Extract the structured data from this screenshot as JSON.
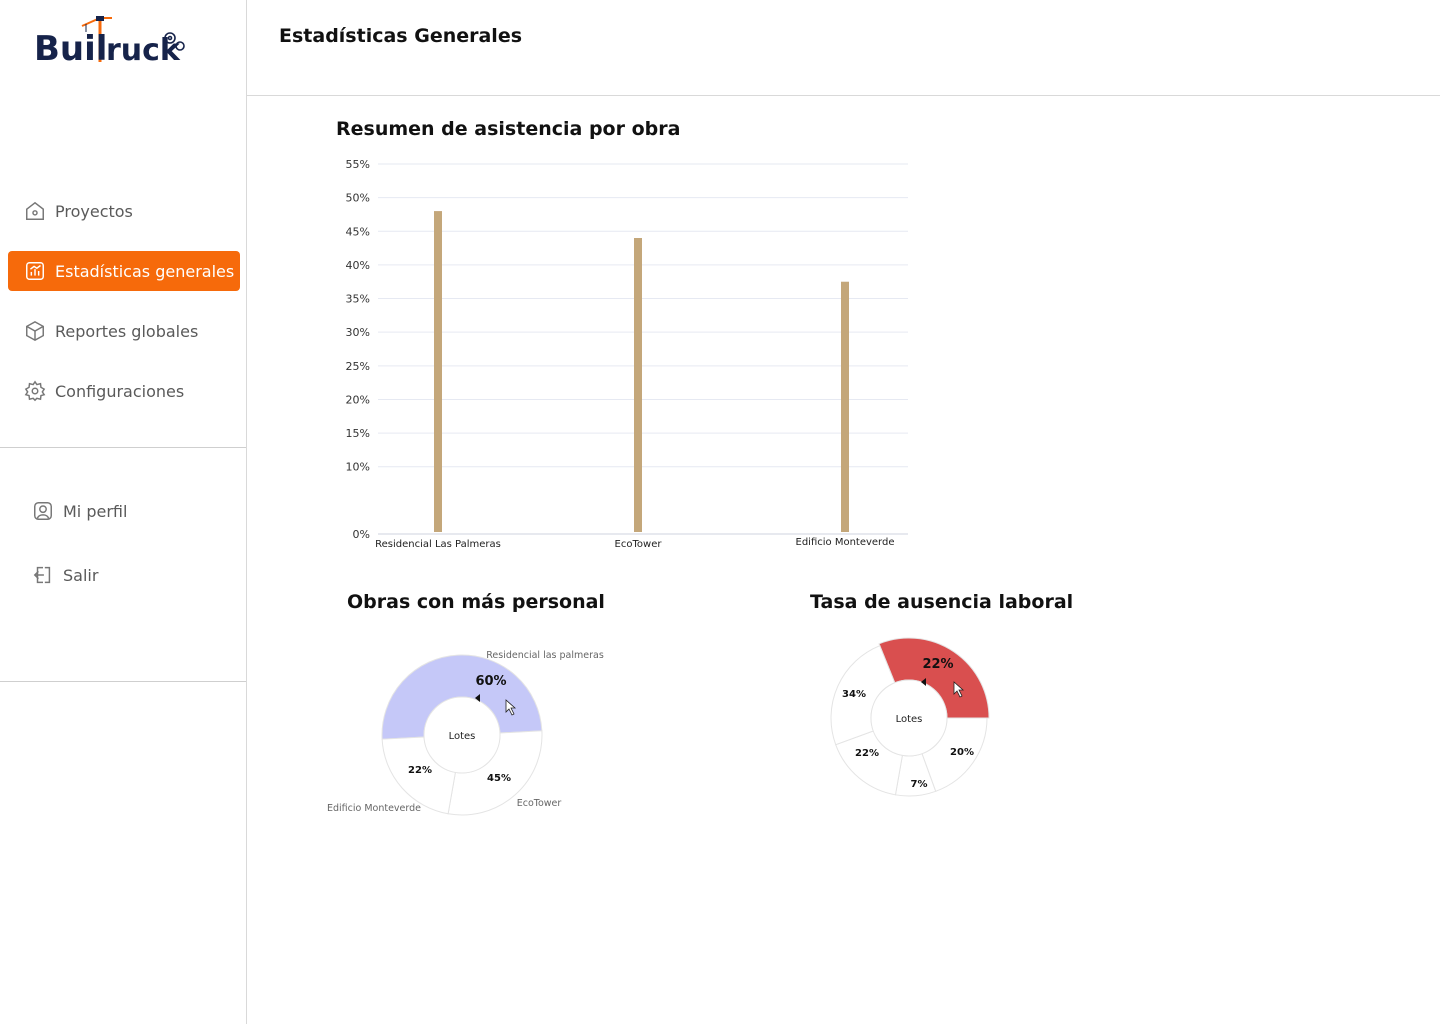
{
  "brand": {
    "name": "BuilTruck",
    "accent": "#f66a0b",
    "navy": "#16234a"
  },
  "sidebar": {
    "items": [
      {
        "label": "Proyectos",
        "icon": "home-icon",
        "active": false
      },
      {
        "label": "Estadísticas generales",
        "icon": "chart-icon",
        "active": true
      },
      {
        "label": "Reportes globales",
        "icon": "cube-icon",
        "active": false
      },
      {
        "label": "Configuraciones",
        "icon": "gear-icon",
        "active": false
      }
    ],
    "secondary": [
      {
        "label": "Mi perfil",
        "icon": "user-icon"
      },
      {
        "label": "Salir",
        "icon": "logout-icon"
      }
    ]
  },
  "header": {
    "title": "Estadísticas Generales"
  },
  "charts": {
    "attendance_title": "Resumen de asistencia por obra",
    "staff_title": "Obras con más personal",
    "absence_title": "Tasa de ausencia laboral"
  },
  "chart_data": [
    {
      "type": "bar",
      "title": "Resumen de asistencia por obra",
      "categories": [
        "Residencial Las Palmeras",
        "EcoTower",
        "Edificio Monteverde"
      ],
      "values": [
        48,
        44,
        37.5
      ],
      "ylim": [
        0,
        55
      ],
      "yticks": [
        "0%",
        "10%",
        "15%",
        "20%",
        "25%",
        "30%",
        "35%",
        "40%",
        "45%",
        "50%",
        "55%"
      ],
      "grid": true,
      "bar_color": "#c4a77a"
    },
    {
      "type": "pie",
      "title": "Obras con más personal",
      "center_label": "Lotes",
      "slices": [
        {
          "name": "Residencial las palmeras",
          "value": 60,
          "label": "60%",
          "color": "#c5c8f8"
        },
        {
          "name": "EcoTower",
          "value": 45,
          "label": "45%",
          "color": "#ffffff"
        },
        {
          "name": "Edificio Monteverde",
          "value": 22,
          "label": "22%",
          "color": "#ffffff"
        }
      ]
    },
    {
      "type": "pie",
      "title": "Tasa de ausencia laboral",
      "center_label": "Lotes",
      "slices": [
        {
          "value": 22,
          "label": "22%",
          "color": "#d94f4f"
        },
        {
          "value": 20,
          "label": "20%",
          "color": "#ffffff"
        },
        {
          "value": 7,
          "label": "7%",
          "color": "#ffffff"
        },
        {
          "value": 22,
          "label": "22%",
          "color": "#ffffff"
        },
        {
          "value": 34,
          "label": "34%",
          "color": "#ffffff"
        }
      ]
    }
  ]
}
